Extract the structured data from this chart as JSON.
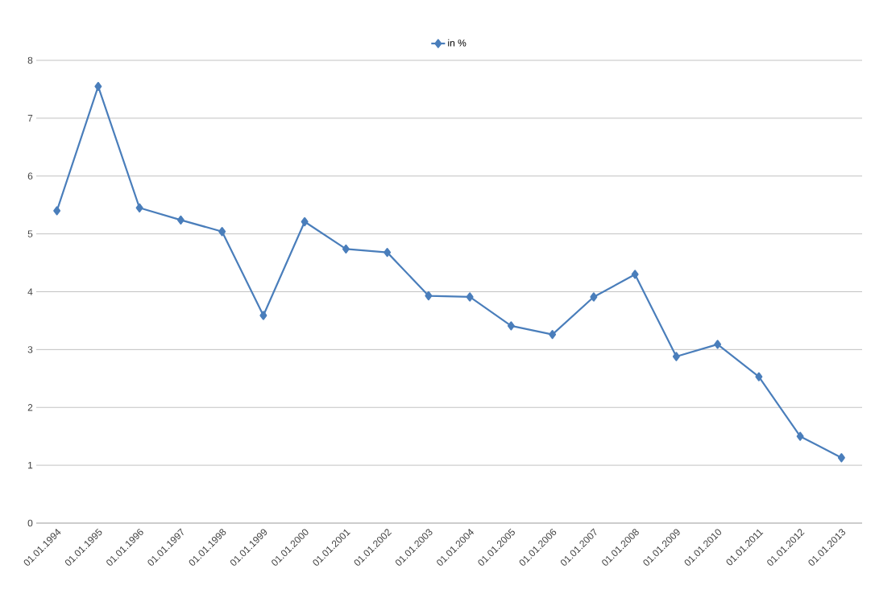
{
  "chart_data": {
    "type": "line",
    "categories": [
      "01.01.1994",
      "01.01.1995",
      "01.01.1996",
      "01.01.1997",
      "01.01.1998",
      "01.01.1999",
      "01.01.2000",
      "01.01.2001",
      "01.01.2002",
      "01.01.2003",
      "01.01.2004",
      "01.01.2005",
      "01.01.2006",
      "01.01.2007",
      "01.01.2008",
      "01.01.2009",
      "01.01.2010",
      "01.01.2011",
      "01.01.2012",
      "01.01.2013"
    ],
    "series": [
      {
        "name": "in %",
        "color": "#4a7ebb",
        "values": [
          5.4,
          7.55,
          5.45,
          5.24,
          5.04,
          3.59,
          5.21,
          4.74,
          4.68,
          3.93,
          3.91,
          3.41,
          3.26,
          3.91,
          4.3,
          2.88,
          3.09,
          2.53,
          1.5,
          1.13
        ]
      }
    ],
    "ylim": [
      0,
      8
    ],
    "yticks": [
      0,
      1,
      2,
      3,
      4,
      5,
      6,
      7,
      8
    ],
    "grid": "y",
    "legend": "top",
    "marker": "diamond",
    "line_style": "solid"
  }
}
